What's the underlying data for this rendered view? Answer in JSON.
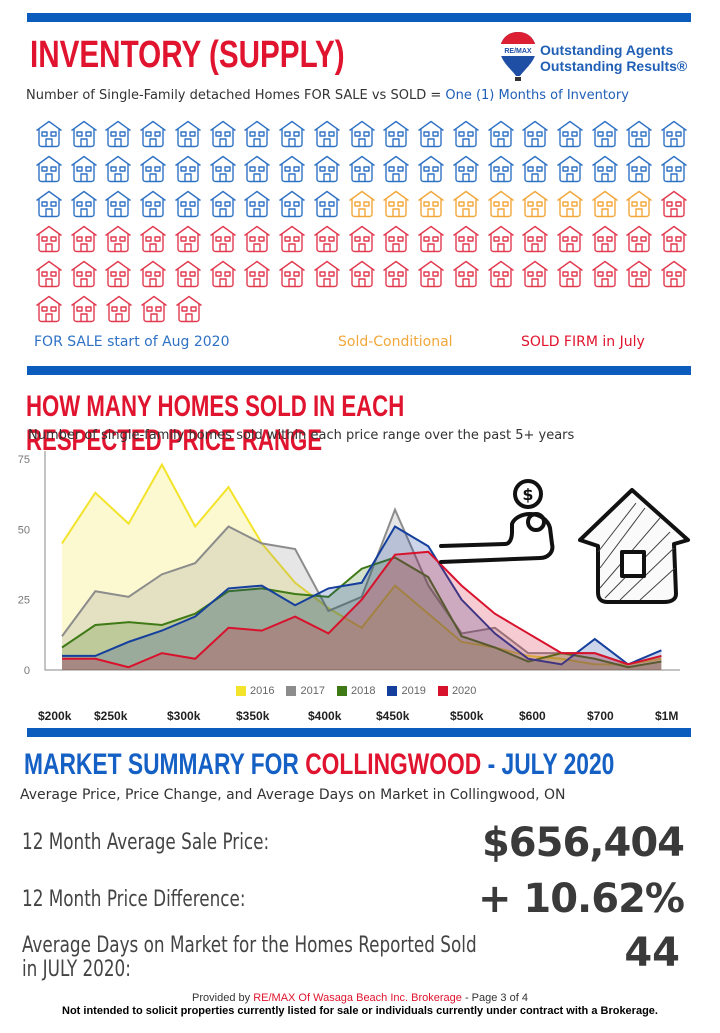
{
  "inventory": {
    "title": "INVENTORY (SUPPLY)",
    "subtitle_prefix": "Number of Single-Family detached Homes FOR SALE vs SOLD = ",
    "subtitle_highlight": "One (1) Months of Inventory",
    "counts": {
      "for_sale": 47,
      "sold_conditional": 9,
      "sold_firm": 44
    },
    "per_row": 19,
    "colors": {
      "for_sale": "#2f72c4",
      "sold_conditional": "#f2a73b",
      "sold_firm": "#e23a4f"
    },
    "legend": {
      "for_sale": "FOR SALE start of Aug 2020",
      "sold_conditional": "Sold-Conditional",
      "sold_firm": "SOLD FIRM in July"
    }
  },
  "logo": {
    "brand": "RE/MAX",
    "line1": "Outstanding Agents",
    "line2": "Outstanding Results®"
  },
  "price_range": {
    "title": "HOW MANY HOMES SOLD IN EACH RESPECTED PRICE RANGE",
    "subtitle": "Number of single-family homes sold within each price range over the past 5+ years"
  },
  "chart_data": {
    "type": "area",
    "title": "HOW MANY HOMES SOLD IN EACH RESPECTED PRICE RANGE",
    "subtitle": "Number of single-family homes sold within each price range over the past 5+ years",
    "xlabel": "",
    "ylabel": "",
    "ylim": [
      0,
      75
    ],
    "yticks": [
      0,
      25,
      50,
      75
    ],
    "grid": false,
    "legend_position": "bottom",
    "x_tick_labels": [
      "$200k",
      "$250k",
      "$300k",
      "$350k",
      "$400k",
      "$450k",
      "$500k",
      "$600",
      "$700",
      "$1M"
    ],
    "points_count": 19,
    "series": [
      {
        "name": "2016",
        "color": "#f3e32a",
        "values": [
          45,
          63,
          52,
          73,
          51,
          65,
          45,
          31,
          22,
          15,
          30,
          20,
          10,
          8,
          5,
          4,
          2,
          2,
          4
        ]
      },
      {
        "name": "2017",
        "color": "#8c8c8c",
        "values": [
          12,
          28,
          26,
          34,
          38,
          51,
          45,
          43,
          21,
          26,
          57,
          30,
          13,
          15,
          6,
          6,
          6,
          2,
          5
        ]
      },
      {
        "name": "2018",
        "color": "#3f7a16",
        "values": [
          8,
          16,
          17,
          16,
          20,
          28,
          29,
          27,
          26,
          36,
          40,
          33,
          12,
          8,
          3,
          6,
          4,
          1,
          3
        ]
      },
      {
        "name": "2019",
        "color": "#153f9c",
        "values": [
          5,
          5,
          10,
          14,
          19,
          29,
          30,
          23,
          29,
          31,
          51,
          44,
          25,
          13,
          4,
          2,
          11,
          2,
          7
        ]
      },
      {
        "name": "2020",
        "color": "#d8122c",
        "values": [
          4,
          4,
          1,
          6,
          4,
          15,
          14,
          19,
          13,
          25,
          41,
          42,
          30,
          20,
          13,
          6,
          6,
          2,
          5
        ]
      }
    ]
  },
  "market": {
    "title_part1": "MARKET SUMMARY FOR",
    "title_city": "COLLINGWOOD",
    "title_part2": "- JULY 2020",
    "subtitle": "Average Price, Price Change, and Average Days on Market in Collingwood, ON",
    "stats": [
      {
        "label": "12 Month Average Sale Price:",
        "value": "$656,404"
      },
      {
        "label": "12 Month Price Difference:",
        "value": "+ 10.62%"
      },
      {
        "label_line1": "Average Days on Market for the Homes Reported Sold",
        "label_line2": "in JULY 2020:",
        "value": "44"
      }
    ]
  },
  "footer": {
    "provided_by": "Provided by ",
    "brokerage": "RE/MAX Of Wasaga Beach Inc. Brokerage",
    "page": " - Page 3 of 4",
    "disclaimer": "Not intended to solicit properties currently listed for sale or individuals currently under contract with a Brokerage."
  }
}
